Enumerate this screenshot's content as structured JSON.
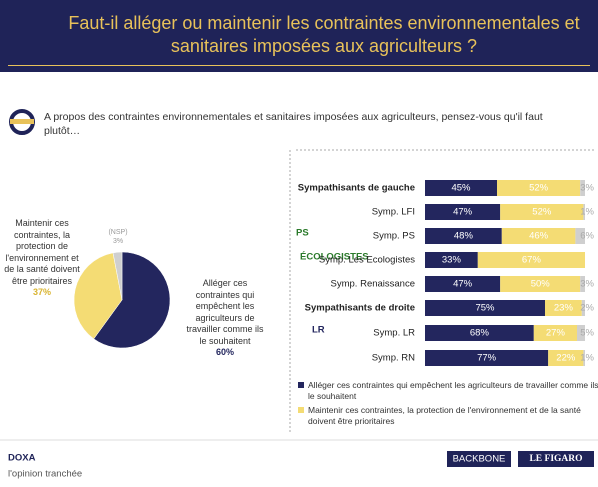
{
  "header": {
    "title": "Faut-il alléger ou maintenir les contraintes environnementales et sanitaires imposées aux agriculteurs ?"
  },
  "question": "A propos des contraintes environnementales et sanitaires imposées aux agriculteurs, pensez-vous qu'il faut plutôt…",
  "chart_data": [
    {
      "type": "pie",
      "categories": [
        "Alléger ces contraintes qui empêchent les agriculteurs de travailler comme ils le souhaitent",
        "Maintenir ces contraintes, la protection de l'environnement et de la santé doivent être prioritaires",
        "(NSP)"
      ],
      "values": [
        60,
        37,
        3
      ],
      "value_labels": [
        "60%",
        "37%",
        "3%"
      ],
      "colors": [
        "#23265e",
        "#f4dc74",
        "#cfcfcf"
      ]
    },
    {
      "type": "stacked-bar",
      "categories": [
        "Sympathisants de gauche",
        "Symp. LFI",
        "Symp. PS",
        "Symp. Les Ecologistes",
        "Symp. Renaissance",
        "Sympathisants de droite",
        "Symp. LR",
        "Symp. RN"
      ],
      "xlim": [
        0,
        100
      ],
      "series": [
        {
          "name": "Alléger ces contraintes qui empêchent les agriculteurs de travailler comme ils le souhaitent",
          "color": "#23265e",
          "values": [
            45,
            47,
            48,
            33,
            47,
            75,
            68,
            77
          ],
          "value_labels": [
            "45%",
            "47%",
            "48%",
            "33%",
            "47%",
            "75%",
            "68%",
            "77%"
          ]
        },
        {
          "name": "Maintenir ces contraintes, la protection de l'environnement et de la santé doivent être prioritaires",
          "color": "#f4dc74",
          "values": [
            52,
            52,
            46,
            67,
            50,
            23,
            27,
            22
          ],
          "value_labels": [
            "52%",
            "52%",
            "46%",
            "67%",
            "50%",
            "23%",
            "27%",
            "22%"
          ]
        },
        {
          "name": "(NSP)",
          "color": "#cfcfcf",
          "values": [
            3,
            1,
            6,
            null,
            3,
            2,
            5,
            1
          ],
          "value_labels": [
            "3%",
            "1%",
            "6%",
            null,
            "3%",
            "2%",
            "5%",
            "1%"
          ]
        }
      ]
    }
  ],
  "logos": {
    "ps": "PS",
    "ecolo": "ÉCOLOGISTES",
    "lr": "LR"
  },
  "footer": {
    "brand": "DOXA",
    "tagline": "l'opinion tranchée",
    "partner1": "BACKBONE",
    "partner2": "LE FIGARO"
  }
}
